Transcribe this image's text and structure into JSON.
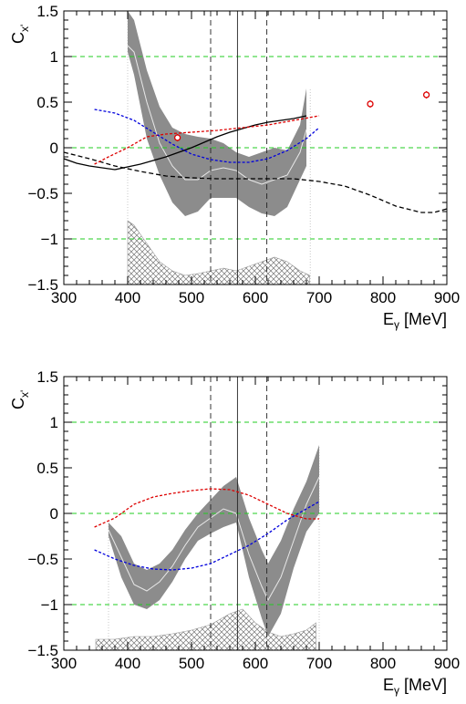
{
  "chart_data": [
    {
      "type": "line",
      "xlabel": "E",
      "xlabel_sub": "γ",
      "xlabel_unit": " [MeV]",
      "ylabel": "C",
      "ylabel_sub": "x'",
      "xlim": [
        300,
        900
      ],
      "ylim": [
        -1.5,
        1.5
      ],
      "xticks": [
        300,
        400,
        500,
        600,
        700,
        800,
        900
      ],
      "yticks": [
        -1.5,
        -1,
        -0.5,
        0,
        0.5,
        1,
        1.5
      ],
      "grid": "none",
      "reference_lines": [
        1,
        0,
        -1
      ],
      "vertical_lines": [
        {
          "x": 530,
          "style": "dashed"
        },
        {
          "x": 572,
          "style": "solid"
        },
        {
          "x": 618,
          "style": "dashed"
        }
      ],
      "band": {
        "x": [
          400,
          410,
          430,
          450,
          470,
          490,
          510,
          530,
          550,
          570,
          590,
          610,
          630,
          650,
          670,
          680
        ],
        "upper": [
          1.5,
          1.4,
          0.85,
          0.45,
          0.22,
          0.15,
          0.12,
          0.1,
          0.05,
          -0.05,
          -0.1,
          -0.05,
          0.0,
          -0.03,
          0.25,
          0.65
        ],
        "lower": [
          1.05,
          0.8,
          0.1,
          -0.3,
          -0.6,
          -0.75,
          -0.7,
          -0.55,
          -0.55,
          -0.55,
          -0.65,
          -0.72,
          -0.75,
          -0.65,
          -0.35,
          -0.2
        ],
        "central": [
          1.12,
          1.05,
          0.5,
          0.05,
          -0.2,
          -0.35,
          -0.35,
          -0.25,
          -0.22,
          -0.25,
          -0.35,
          -0.4,
          -0.35,
          -0.3,
          -0.05,
          0.2
        ]
      },
      "band_edges_x": [
        400,
        686
      ],
      "systematic": {
        "x": [
          400,
          410,
          430,
          450,
          470,
          490,
          510,
          530,
          550,
          570,
          590,
          610,
          630,
          650,
          670,
          685
        ],
        "top": [
          -0.8,
          -0.85,
          -1.05,
          -1.25,
          -1.35,
          -1.4,
          -1.38,
          -1.35,
          -1.32,
          -1.35,
          -1.3,
          -1.25,
          -1.2,
          -1.25,
          -1.35,
          -1.4
        ]
      },
      "series": [
        {
          "style": "solid",
          "color": "#000000",
          "x": [
            300,
            320,
            340,
            360,
            380,
            400,
            420,
            440,
            460,
            480,
            500,
            520,
            540,
            560,
            580,
            600,
            620,
            640,
            660,
            680
          ],
          "y": [
            -0.12,
            -0.17,
            -0.2,
            -0.22,
            -0.24,
            -0.21,
            -0.18,
            -0.14,
            -0.1,
            -0.05,
            0.0,
            0.06,
            0.12,
            0.17,
            0.21,
            0.25,
            0.28,
            0.3,
            0.32,
            0.35
          ]
        },
        {
          "style": "dashed",
          "color": "#000000",
          "x": [
            300,
            340,
            380,
            420,
            460,
            500,
            540,
            580,
            620,
            660,
            700,
            740,
            780,
            820,
            860,
            880,
            900
          ],
          "y": [
            -0.05,
            -0.12,
            -0.2,
            -0.26,
            -0.31,
            -0.33,
            -0.34,
            -0.34,
            -0.34,
            -0.34,
            -0.37,
            -0.42,
            -0.52,
            -0.64,
            -0.71,
            -0.71,
            -0.67
          ]
        },
        {
          "style": "dashed",
          "color": "#dd0000",
          "x": [
            348,
            370,
            400,
            430,
            460,
            500,
            540,
            580,
            620,
            660,
            700
          ],
          "y": [
            -0.18,
            -0.1,
            0.0,
            0.12,
            0.15,
            0.17,
            0.19,
            0.22,
            0.25,
            0.3,
            0.35
          ]
        },
        {
          "style": "dashed",
          "color": "#0000dd",
          "x": [
            348,
            380,
            410,
            440,
            470,
            500,
            530,
            560,
            590,
            620,
            650,
            680,
            700
          ],
          "y": [
            0.42,
            0.38,
            0.3,
            0.17,
            0.04,
            -0.07,
            -0.13,
            -0.16,
            -0.16,
            -0.12,
            -0.03,
            0.1,
            0.22
          ]
        }
      ],
      "points": [
        {
          "x": 478,
          "y": 0.11,
          "err": 0.04
        },
        {
          "x": 780,
          "y": 0.48,
          "err": 0.04
        },
        {
          "x": 868,
          "y": 0.58,
          "err": 0.04
        }
      ],
      "tick_labels": {
        "x": [
          "300",
          "400",
          "500",
          "600",
          "700",
          "800",
          "900"
        ],
        "y": [
          "−1.5",
          "−1",
          "−0.5",
          "0",
          "0.5",
          "1",
          "1.5"
        ]
      }
    },
    {
      "type": "line",
      "xlabel": "E",
      "xlabel_sub": "γ",
      "xlabel_unit": " [MeV]",
      "ylabel": "C",
      "ylabel_sub": "x'",
      "xlim": [
        300,
        900
      ],
      "ylim": [
        -1.5,
        1.5
      ],
      "xticks": [
        300,
        400,
        500,
        600,
        700,
        800,
        900
      ],
      "yticks": [
        -1.5,
        -1,
        -0.5,
        0,
        0.5,
        1,
        1.5
      ],
      "grid": "none",
      "reference_lines": [
        1,
        0,
        -1
      ],
      "vertical_lines": [
        {
          "x": 530,
          "style": "dashed"
        },
        {
          "x": 572,
          "style": "solid"
        },
        {
          "x": 618,
          "style": "dashed"
        }
      ],
      "band": {
        "x": [
          370,
          390,
          410,
          430,
          450,
          470,
          490,
          510,
          530,
          550,
          570,
          590,
          610,
          620,
          640,
          660,
          680,
          700
        ],
        "upper": [
          -0.1,
          -0.25,
          -0.55,
          -0.62,
          -0.55,
          -0.4,
          -0.18,
          0.0,
          0.15,
          0.3,
          0.4,
          -0.05,
          -0.4,
          -0.55,
          -0.3,
          0.05,
          0.35,
          0.75
        ],
        "lower": [
          -0.25,
          -0.7,
          -1.0,
          -1.05,
          -0.95,
          -0.75,
          -0.5,
          -0.3,
          -0.22,
          -0.15,
          -0.1,
          -0.7,
          -1.15,
          -1.35,
          -1.1,
          -0.6,
          -0.2,
          0.0
        ],
        "central": [
          -0.18,
          -0.48,
          -0.78,
          -0.85,
          -0.75,
          -0.58,
          -0.35,
          -0.15,
          -0.05,
          0.05,
          0.0,
          -0.45,
          -0.8,
          -0.95,
          -0.7,
          -0.3,
          0.1,
          0.4
        ]
      },
      "band_edges_x": [
        370,
        700
      ],
      "systematic": {
        "x": [
          350,
          380,
          410,
          440,
          470,
          500,
          530,
          560,
          580,
          600,
          620,
          640,
          660,
          680,
          695
        ],
        "top": [
          -1.38,
          -1.38,
          -1.35,
          -1.35,
          -1.32,
          -1.28,
          -1.22,
          -1.1,
          -1.05,
          -1.2,
          -1.3,
          -1.35,
          -1.32,
          -1.28,
          -1.2
        ]
      },
      "series": [
        {
          "style": "dashed",
          "color": "#dd0000",
          "x": [
            348,
            380,
            410,
            440,
            470,
            500,
            530,
            560,
            590,
            620,
            650,
            680,
            700
          ],
          "y": [
            -0.15,
            -0.05,
            0.1,
            0.18,
            0.22,
            0.25,
            0.27,
            0.26,
            0.2,
            0.1,
            0.0,
            -0.06,
            -0.06
          ]
        },
        {
          "style": "dashed",
          "color": "#0000dd",
          "x": [
            348,
            380,
            410,
            440,
            470,
            500,
            530,
            560,
            590,
            620,
            650,
            680,
            700
          ],
          "y": [
            -0.4,
            -0.5,
            -0.57,
            -0.61,
            -0.62,
            -0.6,
            -0.55,
            -0.45,
            -0.35,
            -0.22,
            -0.07,
            0.05,
            0.13
          ]
        }
      ],
      "points": [],
      "tick_labels": {
        "x": [
          "300",
          "400",
          "500",
          "600",
          "700",
          "800",
          "900"
        ],
        "y": [
          "−1.5",
          "−1",
          "−0.5",
          "0",
          "0.5",
          "1",
          "1.5"
        ]
      }
    }
  ]
}
